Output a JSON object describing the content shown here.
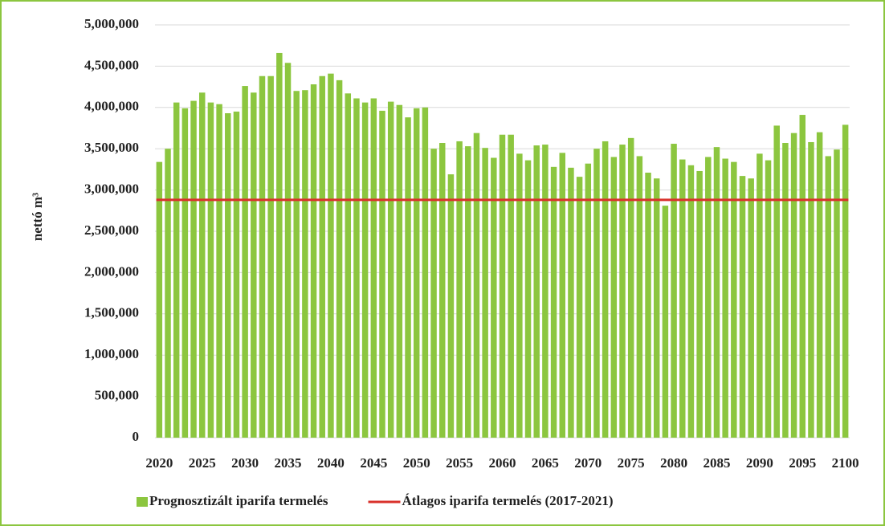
{
  "chart_data": {
    "type": "bar",
    "ylabel": "nettó m³",
    "categories": [
      "2020",
      null,
      null,
      null,
      null,
      "2025",
      null,
      null,
      null,
      null,
      "2030",
      null,
      null,
      null,
      null,
      "2035",
      null,
      null,
      null,
      null,
      "2040",
      null,
      null,
      null,
      null,
      "2045",
      null,
      null,
      null,
      null,
      "2050",
      null,
      null,
      null,
      null,
      "2055",
      null,
      null,
      null,
      null,
      "2060",
      null,
      null,
      null,
      null,
      "2065",
      null,
      null,
      null,
      null,
      "2070",
      null,
      null,
      null,
      null,
      "2075",
      null,
      null,
      null,
      null,
      "2080",
      null,
      null,
      null,
      null,
      "2085",
      null,
      null,
      null,
      null,
      "2090",
      null,
      null,
      null,
      null,
      "2095",
      null,
      null,
      null,
      null,
      "2100"
    ],
    "series": [
      {
        "name": "Prognosztizált iparifa termelés",
        "color": "#8cc63f",
        "values": [
          3340000,
          3500000,
          4060000,
          3990000,
          4080000,
          4180000,
          4060000,
          4040000,
          3930000,
          3950000,
          4260000,
          4180000,
          4380000,
          4380000,
          4660000,
          4540000,
          4200000,
          4210000,
          4280000,
          4380000,
          4410000,
          4330000,
          4170000,
          4110000,
          4060000,
          4110000,
          3960000,
          4070000,
          4030000,
          3880000,
          3990000,
          4000000,
          3500000,
          3570000,
          3190000,
          3590000,
          3530000,
          3690000,
          3510000,
          3390000,
          3670000,
          3670000,
          3440000,
          3360000,
          3540000,
          3550000,
          3280000,
          3450000,
          3270000,
          3160000,
          3320000,
          3500000,
          3590000,
          3400000,
          3550000,
          3630000,
          3410000,
          3210000,
          3140000,
          2810000,
          3560000,
          3370000,
          3300000,
          3230000,
          3400000,
          3520000,
          3380000,
          3340000,
          3170000,
          3140000,
          3440000,
          3360000,
          3780000,
          3570000,
          3690000,
          3910000,
          3580000,
          3700000,
          3410000,
          3490000,
          3790000
        ]
      },
      {
        "name": "Átlagos iparifa termelés (2017-2021)",
        "color": "#d9312b",
        "type": "hline",
        "value": 2880000
      }
    ],
    "ylim": [
      0,
      5000000
    ],
    "yticks": [
      0,
      {
        "value": 500000,
        "label": "500,000"
      },
      {
        "value": 1000000,
        "label": "1,000,000"
      },
      {
        "value": 1500000,
        "label": "1,500,000"
      },
      {
        "value": 2000000,
        "label": "2,000,000"
      },
      {
        "value": 2500000,
        "label": "2,500,000"
      },
      {
        "value": 3000000,
        "label": "3,000,000"
      },
      {
        "value": 3500000,
        "label": "3,500,000"
      },
      {
        "value": 4000000,
        "label": "4,000,000"
      },
      {
        "value": 4500000,
        "label": "4,500,000"
      },
      {
        "value": 5000000,
        "label": "5,000,000"
      }
    ],
    "grid": true,
    "legend": "bottom"
  }
}
